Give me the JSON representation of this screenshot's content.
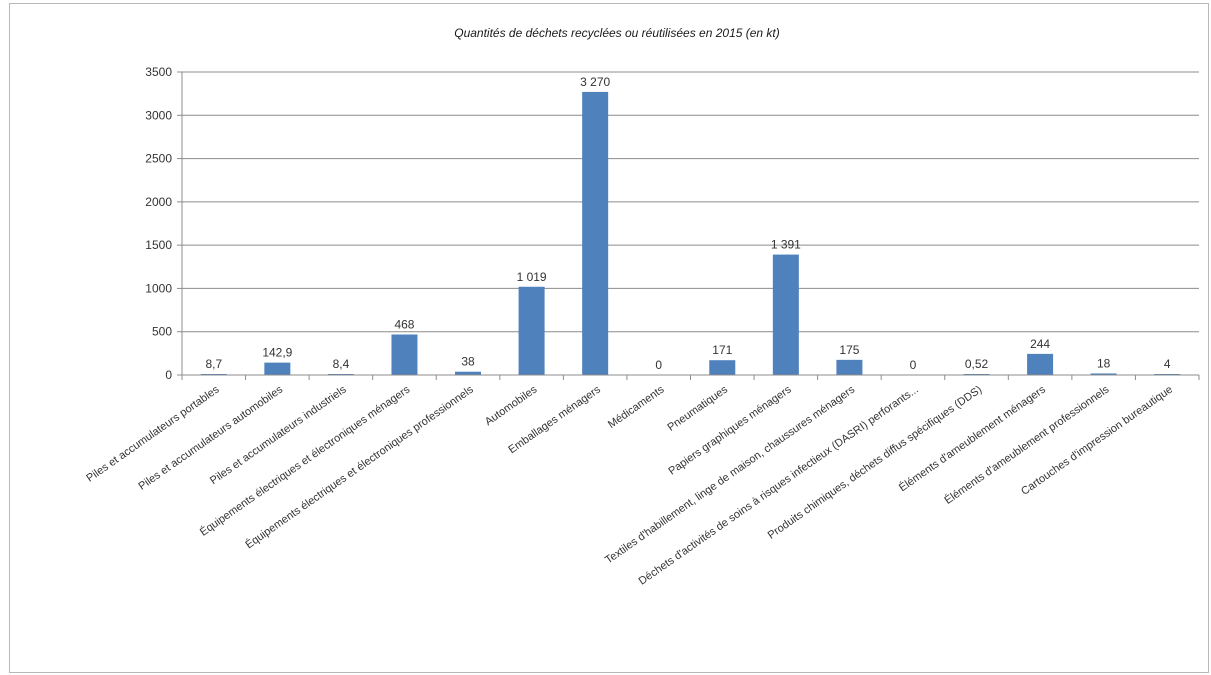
{
  "chart_data": {
    "type": "bar",
    "title": "Quantités de déchets recyclées ou réutilisées en 2015 (en kt)",
    "xlabel": "",
    "ylabel": "",
    "ylim": [
      0,
      3500
    ],
    "yticks": [
      "0",
      "500",
      "1000",
      "1500",
      "2000",
      "2500",
      "3000",
      "3500"
    ],
    "grid": true,
    "legend": "none",
    "bar_color": "#4f81bd",
    "categories": [
      "Piles et accumulateurs portables",
      "Piles et accumulateurs automobiles",
      "Piles et accumulateurs industriels",
      "Équipements électriques et électroniques ménagers",
      "Équipements électriques et électroniques professionnels",
      "Automobiles",
      "Emballages ménagers",
      "Médicaments",
      "Pneumatiques",
      "Papiers graphiques ménagers",
      "Textiles d'habillement, linge de maison, chaussures ménagers",
      "Déchets d'activités de soins à risques infectieux (DASRI) perforants...",
      "Produits chimiques, déchets diffus spécifiques (DDS)",
      "Éléments d'ameublement ménagers",
      "Éléments d'ameublement professionnels",
      "Cartouches d'impression bureautique"
    ],
    "values": [
      8.7,
      142.9,
      8.4,
      468,
      38,
      1019,
      3270,
      0,
      171,
      1391,
      175,
      0,
      0.52,
      244,
      18,
      4
    ],
    "data_labels": [
      "8,7",
      "142,9",
      "8,4",
      "468",
      "38",
      "1 019",
      "3 270",
      "0",
      "171",
      "1 391",
      "175",
      "0",
      "0,52",
      "244",
      "18",
      "4"
    ]
  }
}
